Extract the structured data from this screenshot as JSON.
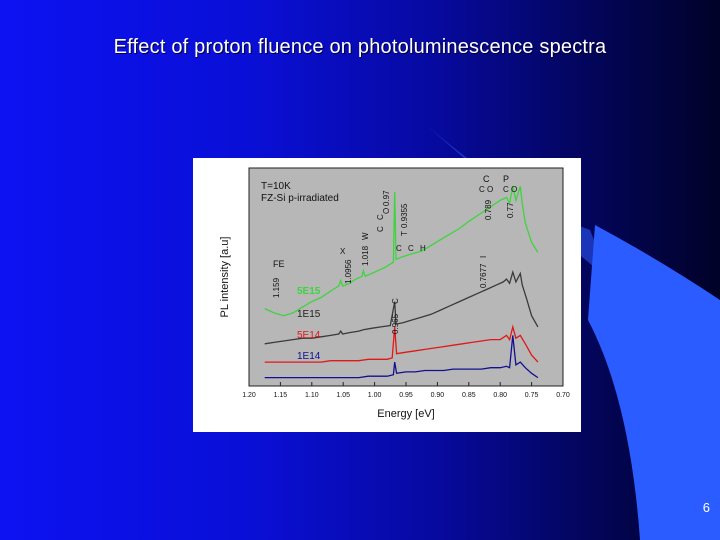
{
  "slide": {
    "title": "Effect of proton fluence on photoluminescence spectra",
    "page_number": "6"
  },
  "colors": {
    "background_start": "#0c12f2",
    "background_end": "#010228",
    "accent_shape": "#2a5cff",
    "figure_panel": "#ffffff",
    "plot_area": "#b7b7b7"
  },
  "chart_data": {
    "type": "line",
    "title": "",
    "xlabel": "Energy [eV]",
    "ylabel": "PL intensity [a.u]",
    "xlim": [
      1.2,
      0.7
    ],
    "x_reversed": true,
    "x_ticks": [
      "1.20",
      "1.15",
      "1.10",
      "1.05",
      "1.00",
      "0.95",
      "0.90",
      "0.85",
      "0.80",
      "0.75",
      "0.70"
    ],
    "grid": false,
    "legend": "inline labels at left",
    "info_lines": [
      "T=10K",
      "FZ-Si p-irradiated"
    ],
    "series": [
      {
        "name": "5E15",
        "color": "#3fd43f",
        "points": [
          [
            1.175,
            0.55
          ],
          [
            1.16,
            0.52
          ],
          [
            1.145,
            0.5
          ],
          [
            1.13,
            0.52
          ],
          [
            1.115,
            0.56
          ],
          [
            1.1,
            0.6
          ],
          [
            1.085,
            0.63
          ],
          [
            1.075,
            0.66
          ],
          [
            1.065,
            0.69
          ],
          [
            1.057,
            0.71
          ],
          [
            1.054,
            0.75
          ],
          [
            1.051,
            0.71
          ],
          [
            1.04,
            0.73
          ],
          [
            1.03,
            0.76
          ],
          [
            1.02,
            0.78
          ],
          [
            1.018,
            0.82
          ],
          [
            1.015,
            0.78
          ],
          [
            1.005,
            0.8
          ],
          [
            0.995,
            0.82
          ],
          [
            0.985,
            0.84
          ],
          [
            0.97,
            0.88
          ],
          [
            0.968,
            1.38
          ],
          [
            0.966,
            0.9
          ],
          [
            0.955,
            0.92
          ],
          [
            0.94,
            0.94
          ],
          [
            0.925,
            0.96
          ],
          [
            0.91,
            1.0
          ],
          [
            0.895,
            1.04
          ],
          [
            0.88,
            1.08
          ],
          [
            0.865,
            1.12
          ],
          [
            0.85,
            1.17
          ],
          [
            0.84,
            1.2
          ],
          [
            0.83,
            1.23
          ],
          [
            0.82,
            1.26
          ],
          [
            0.81,
            1.29
          ],
          [
            0.8,
            1.32
          ],
          [
            0.79,
            1.34
          ],
          [
            0.785,
            1.3
          ],
          [
            0.78,
            1.42
          ],
          [
            0.775,
            1.32
          ],
          [
            0.768,
            1.42
          ],
          [
            0.765,
            1.3
          ],
          [
            0.76,
            1.16
          ],
          [
            0.75,
            1.02
          ],
          [
            0.74,
            0.95
          ]
        ]
      },
      {
        "name": "1E15",
        "color": "#3a3a3a",
        "points": [
          [
            1.175,
            0.3
          ],
          [
            1.16,
            0.31
          ],
          [
            1.145,
            0.32
          ],
          [
            1.13,
            0.33
          ],
          [
            1.115,
            0.34
          ],
          [
            1.1,
            0.34
          ],
          [
            1.085,
            0.35
          ],
          [
            1.07,
            0.36
          ],
          [
            1.057,
            0.37
          ],
          [
            1.054,
            0.39
          ],
          [
            1.051,
            0.37
          ],
          [
            1.04,
            0.38
          ],
          [
            1.025,
            0.39
          ],
          [
            1.018,
            0.4
          ],
          [
            1.005,
            0.41
          ],
          [
            0.99,
            0.42
          ],
          [
            0.975,
            0.43
          ],
          [
            0.968,
            0.6
          ],
          [
            0.966,
            0.44
          ],
          [
            0.955,
            0.45
          ],
          [
            0.94,
            0.47
          ],
          [
            0.925,
            0.49
          ],
          [
            0.91,
            0.51
          ],
          [
            0.895,
            0.54
          ],
          [
            0.88,
            0.57
          ],
          [
            0.865,
            0.6
          ],
          [
            0.85,
            0.63
          ],
          [
            0.835,
            0.66
          ],
          [
            0.82,
            0.69
          ],
          [
            0.805,
            0.72
          ],
          [
            0.795,
            0.74
          ],
          [
            0.79,
            0.76
          ],
          [
            0.785,
            0.73
          ],
          [
            0.78,
            0.81
          ],
          [
            0.775,
            0.74
          ],
          [
            0.768,
            0.8
          ],
          [
            0.765,
            0.72
          ],
          [
            0.758,
            0.62
          ],
          [
            0.75,
            0.5
          ],
          [
            0.74,
            0.42
          ]
        ]
      },
      {
        "name": "5E14",
        "color": "#e01818",
        "points": [
          [
            1.175,
            0.17
          ],
          [
            1.16,
            0.17
          ],
          [
            1.145,
            0.17
          ],
          [
            1.13,
            0.17
          ],
          [
            1.115,
            0.17
          ],
          [
            1.1,
            0.17
          ],
          [
            1.085,
            0.17
          ],
          [
            1.07,
            0.18
          ],
          [
            1.055,
            0.18
          ],
          [
            1.04,
            0.18
          ],
          [
            1.025,
            0.18
          ],
          [
            1.01,
            0.19
          ],
          [
            0.995,
            0.19
          ],
          [
            0.98,
            0.19
          ],
          [
            0.972,
            0.2
          ],
          [
            0.968,
            0.42
          ],
          [
            0.965,
            0.23
          ],
          [
            0.95,
            0.24
          ],
          [
            0.935,
            0.25
          ],
          [
            0.92,
            0.26
          ],
          [
            0.905,
            0.27
          ],
          [
            0.89,
            0.28
          ],
          [
            0.875,
            0.29
          ],
          [
            0.86,
            0.3
          ],
          [
            0.845,
            0.31
          ],
          [
            0.83,
            0.32
          ],
          [
            0.815,
            0.33
          ],
          [
            0.8,
            0.33
          ],
          [
            0.79,
            0.36
          ],
          [
            0.785,
            0.33
          ],
          [
            0.78,
            0.42
          ],
          [
            0.775,
            0.34
          ],
          [
            0.768,
            0.36
          ],
          [
            0.76,
            0.3
          ],
          [
            0.75,
            0.22
          ],
          [
            0.74,
            0.17
          ]
        ]
      },
      {
        "name": "1E14",
        "color": "#101090",
        "points": [
          [
            1.175,
            0.06
          ],
          [
            1.16,
            0.06
          ],
          [
            1.145,
            0.06
          ],
          [
            1.13,
            0.06
          ],
          [
            1.115,
            0.06
          ],
          [
            1.1,
            0.06
          ],
          [
            1.085,
            0.06
          ],
          [
            1.07,
            0.06
          ],
          [
            1.055,
            0.06
          ],
          [
            1.04,
            0.06
          ],
          [
            1.025,
            0.06
          ],
          [
            1.01,
            0.07
          ],
          [
            0.995,
            0.07
          ],
          [
            0.98,
            0.07
          ],
          [
            0.97,
            0.08
          ],
          [
            0.968,
            0.17
          ],
          [
            0.965,
            0.09
          ],
          [
            0.95,
            0.1
          ],
          [
            0.935,
            0.1
          ],
          [
            0.92,
            0.11
          ],
          [
            0.905,
            0.11
          ],
          [
            0.89,
            0.11
          ],
          [
            0.875,
            0.12
          ],
          [
            0.86,
            0.12
          ],
          [
            0.845,
            0.12
          ],
          [
            0.83,
            0.12
          ],
          [
            0.815,
            0.13
          ],
          [
            0.8,
            0.13
          ],
          [
            0.79,
            0.14
          ],
          [
            0.785,
            0.13
          ],
          [
            0.78,
            0.36
          ],
          [
            0.775,
            0.15
          ],
          [
            0.768,
            0.17
          ],
          [
            0.76,
            0.13
          ],
          [
            0.75,
            0.09
          ],
          [
            0.74,
            0.06
          ]
        ]
      }
    ],
    "annotations": [
      "FE",
      "1.159",
      "1.0956",
      "X",
      "1.018",
      "W",
      "C",
      "C",
      "O",
      "0.97",
      "T",
      "0.9355",
      "C",
      "C",
      "H",
      "C",
      "C",
      "O",
      "0.789",
      "P",
      "C",
      "O",
      "0.77",
      "0.7677",
      "I",
      "0.965",
      "C"
    ]
  }
}
